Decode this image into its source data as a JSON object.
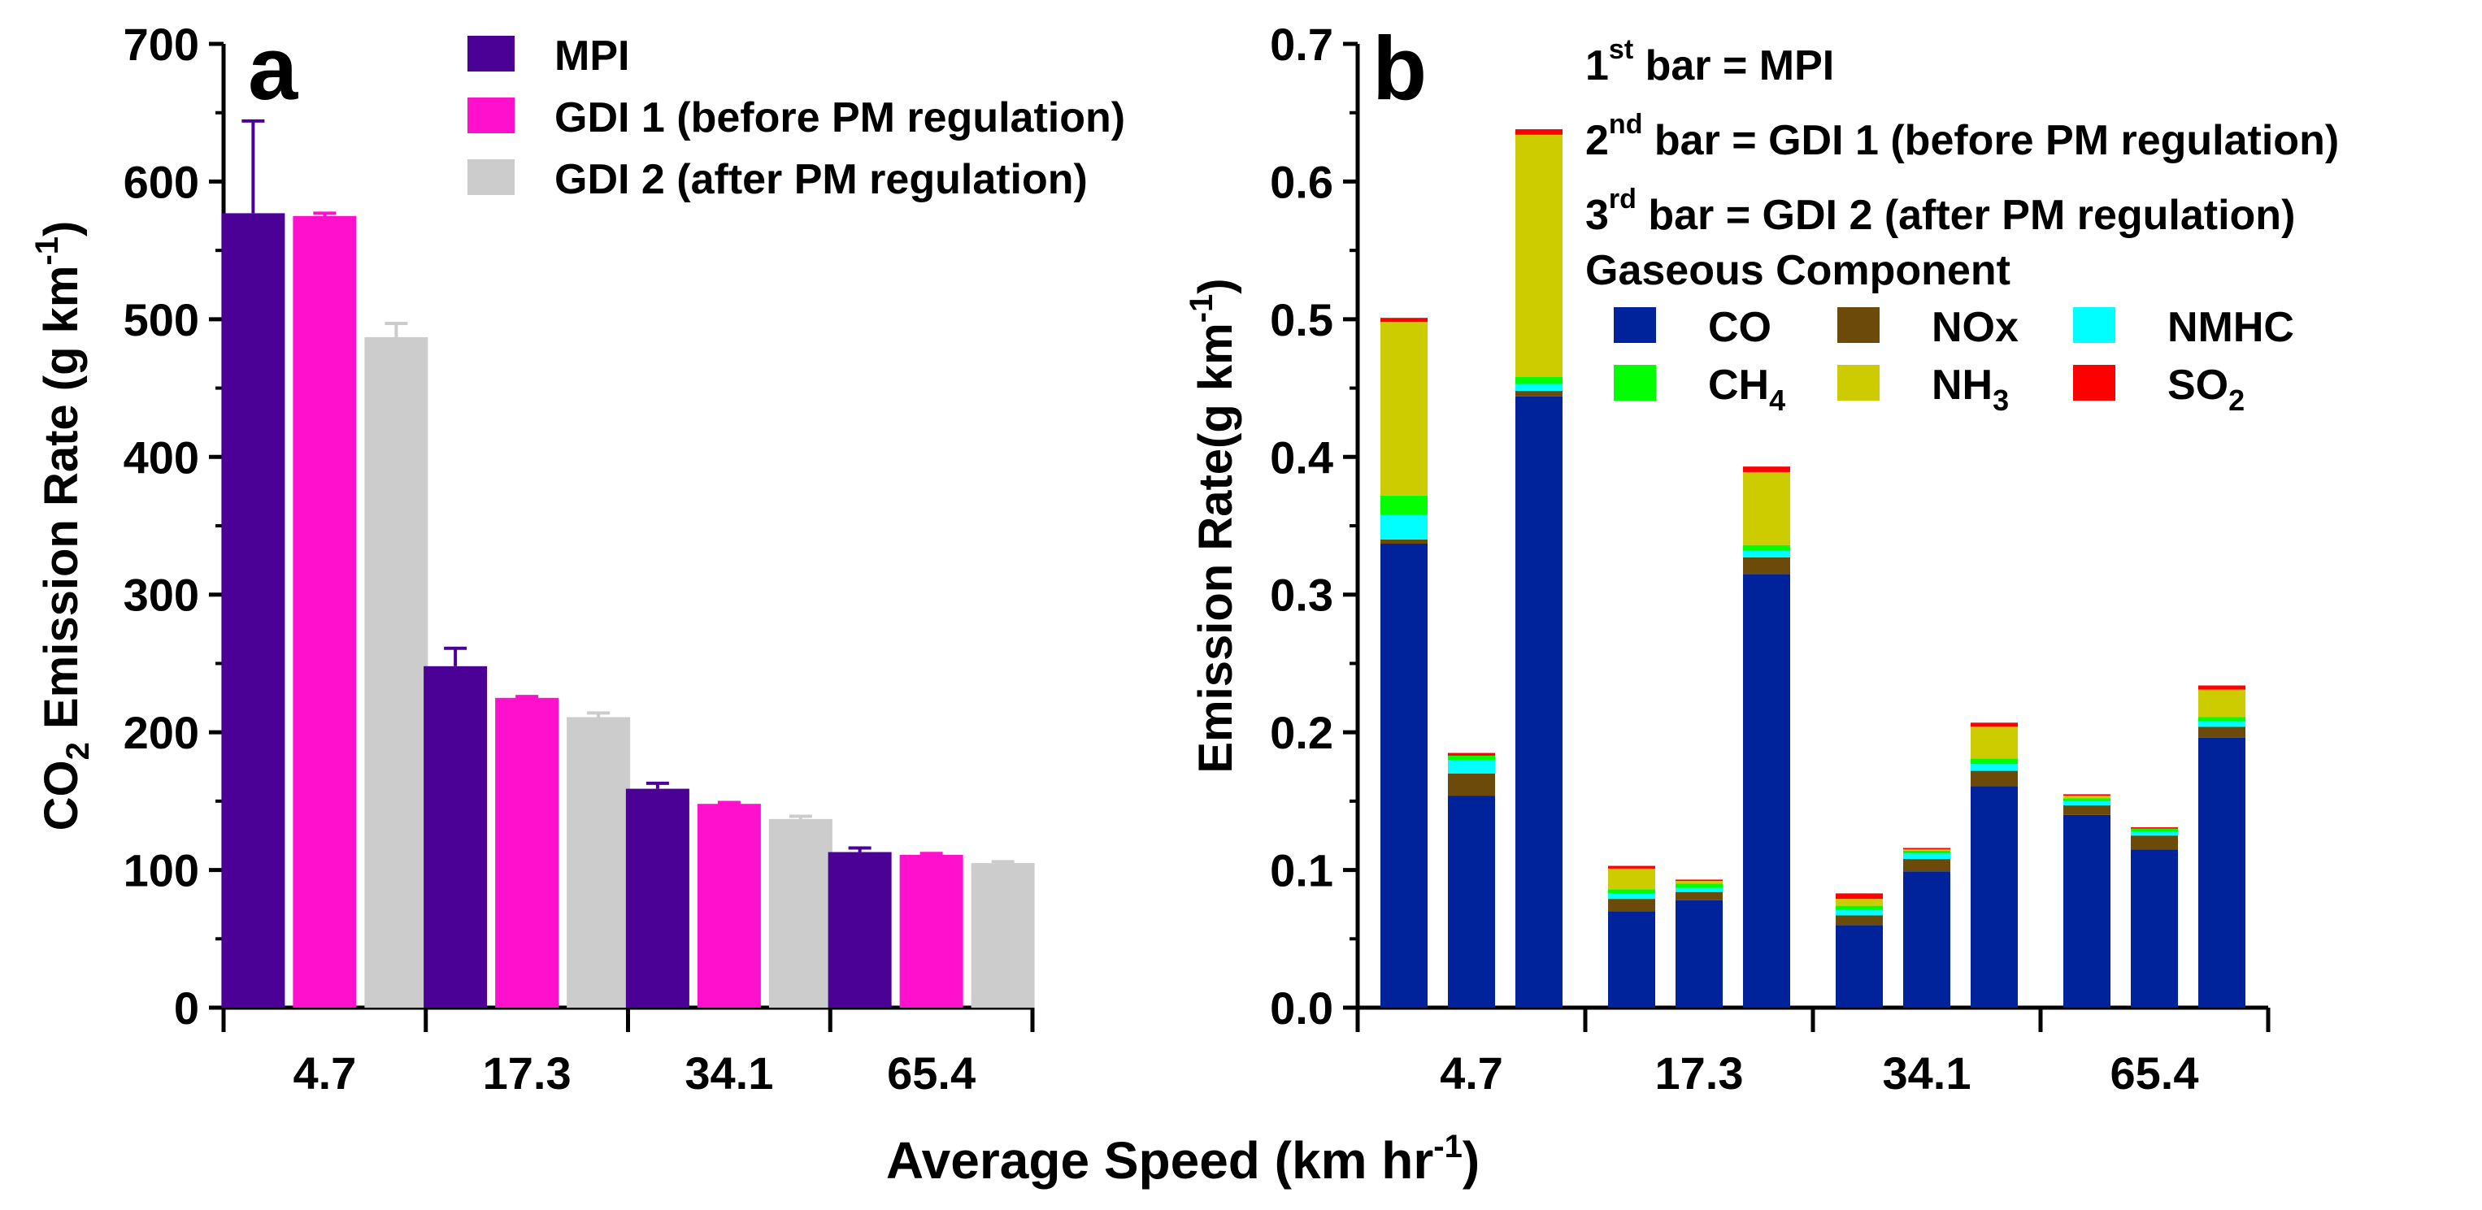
{
  "shared_xlabel": "Average Speed (km hr",
  "shared_xlabel_sup": "-1",
  "shared_xlabel_close": ")",
  "chart_data": [
    {
      "type": "bar",
      "panel_label": "a",
      "title": "",
      "categories": [
        "4.7",
        "17.3",
        "34.1",
        "65.4"
      ],
      "ylabel_parts": {
        "pre": "CO",
        "sub": "2",
        "mid": " Emission Rate (g km",
        "sup": "-1",
        "post": ")"
      },
      "ylim": [
        0,
        700
      ],
      "yticks": [
        0,
        100,
        200,
        300,
        400,
        500,
        600,
        700
      ],
      "series": [
        {
          "name": "MPI",
          "color": "#4b0096",
          "values": [
            577,
            248,
            159,
            113
          ],
          "errors": [
            67,
            13,
            4,
            3
          ]
        },
        {
          "name": "GDI 1 (before PM regulation)",
          "color": "#ff10cc",
          "values": [
            575,
            225,
            148,
            111
          ],
          "errors": [
            2,
            1,
            1,
            1
          ]
        },
        {
          "name": "GDI 2 (after PM regulation)",
          "color": "#cccccc",
          "values": [
            487,
            211,
            137,
            105
          ],
          "errors": [
            10,
            3,
            2,
            1
          ]
        }
      ],
      "legend_position": "top-right"
    },
    {
      "type": "bar",
      "stacked": true,
      "panel_label": "b",
      "categories": [
        "4.7",
        "17.3",
        "34.1",
        "65.4"
      ],
      "ylabel": "Emission Rate(g km",
      "ylabel_sup": "-1",
      "ylabel_post": ")",
      "ylim": [
        0,
        0.7
      ],
      "yticks": [
        "0.0",
        "0.1",
        "0.2",
        "0.3",
        "0.4",
        "0.5",
        "0.6",
        "0.7"
      ],
      "bar_order_notes": [
        {
          "num": "1",
          "sup": "st",
          "text": " bar = MPI"
        },
        {
          "num": "2",
          "sup": "nd",
          "text": " bar = GDI 1 (before PM regulation)"
        },
        {
          "num": "3",
          "sup": "rd",
          "text": " bar = GDI 2 (after PM regulation)"
        }
      ],
      "legend_title": "Gaseous Component",
      "components": [
        {
          "key": "co",
          "name": "CO",
          "sub": "",
          "color": "#00239c"
        },
        {
          "key": "nox",
          "name": "NOx",
          "sub": "",
          "color": "#6b4a0a"
        },
        {
          "key": "nmhc",
          "name": "NMHC",
          "sub": "",
          "color": "#00ffff"
        },
        {
          "key": "ch4",
          "name": "CH",
          "sub": "4",
          "color": "#00ff00"
        },
        {
          "key": "nh3",
          "name": "NH",
          "sub": "3",
          "color": "#cccc00"
        },
        {
          "key": "so2",
          "name": "SO",
          "sub": "2",
          "color": "#ff0000"
        }
      ],
      "bars": [
        {
          "category": "4.7",
          "vehicle": "MPI",
          "co": 0.337,
          "nox": 0.003,
          "nmhc": 0.018,
          "ch4": 0.014,
          "nh3": 0.126,
          "so2": 0.003
        },
        {
          "category": "4.7",
          "vehicle": "GDI 1",
          "co": 0.154,
          "nox": 0.016,
          "nmhc": 0.01,
          "ch4": 0.003,
          "nh3": 0.0,
          "so2": 0.002
        },
        {
          "category": "4.7",
          "vehicle": "GDI 2",
          "co": 0.444,
          "nox": 0.004,
          "nmhc": 0.005,
          "ch4": 0.005,
          "nh3": 0.176,
          "so2": 0.004
        },
        {
          "category": "17.3",
          "vehicle": "MPI",
          "co": 0.07,
          "nox": 0.009,
          "nmhc": 0.004,
          "ch4": 0.003,
          "nh3": 0.015,
          "so2": 0.002
        },
        {
          "category": "17.3",
          "vehicle": "GDI 1",
          "co": 0.078,
          "nox": 0.006,
          "nmhc": 0.003,
          "ch4": 0.003,
          "nh3": 0.002,
          "so2": 0.001
        },
        {
          "category": "17.3",
          "vehicle": "GDI 2",
          "co": 0.315,
          "nox": 0.012,
          "nmhc": 0.005,
          "ch4": 0.004,
          "nh3": 0.053,
          "so2": 0.004
        },
        {
          "category": "34.1",
          "vehicle": "MPI",
          "co": 0.06,
          "nox": 0.007,
          "nmhc": 0.004,
          "ch4": 0.003,
          "nh3": 0.005,
          "so2": 0.004
        },
        {
          "category": "34.1",
          "vehicle": "GDI 1",
          "co": 0.099,
          "nox": 0.009,
          "nmhc": 0.004,
          "ch4": 0.002,
          "nh3": 0.001,
          "so2": 0.001
        },
        {
          "category": "34.1",
          "vehicle": "GDI 2",
          "co": 0.161,
          "nox": 0.011,
          "nmhc": 0.005,
          "ch4": 0.004,
          "nh3": 0.023,
          "so2": 0.003
        },
        {
          "category": "65.4",
          "vehicle": "MPI",
          "co": 0.14,
          "nox": 0.007,
          "nmhc": 0.003,
          "ch4": 0.002,
          "nh3": 0.002,
          "so2": 0.001
        },
        {
          "category": "65.4",
          "vehicle": "GDI 1",
          "co": 0.115,
          "nox": 0.01,
          "nmhc": 0.003,
          "ch4": 0.002,
          "nh3": 0.0,
          "so2": 0.001
        },
        {
          "category": "65.4",
          "vehicle": "GDI 2",
          "co": 0.196,
          "nox": 0.008,
          "nmhc": 0.004,
          "ch4": 0.003,
          "nh3": 0.02,
          "so2": 0.003
        }
      ]
    }
  ]
}
